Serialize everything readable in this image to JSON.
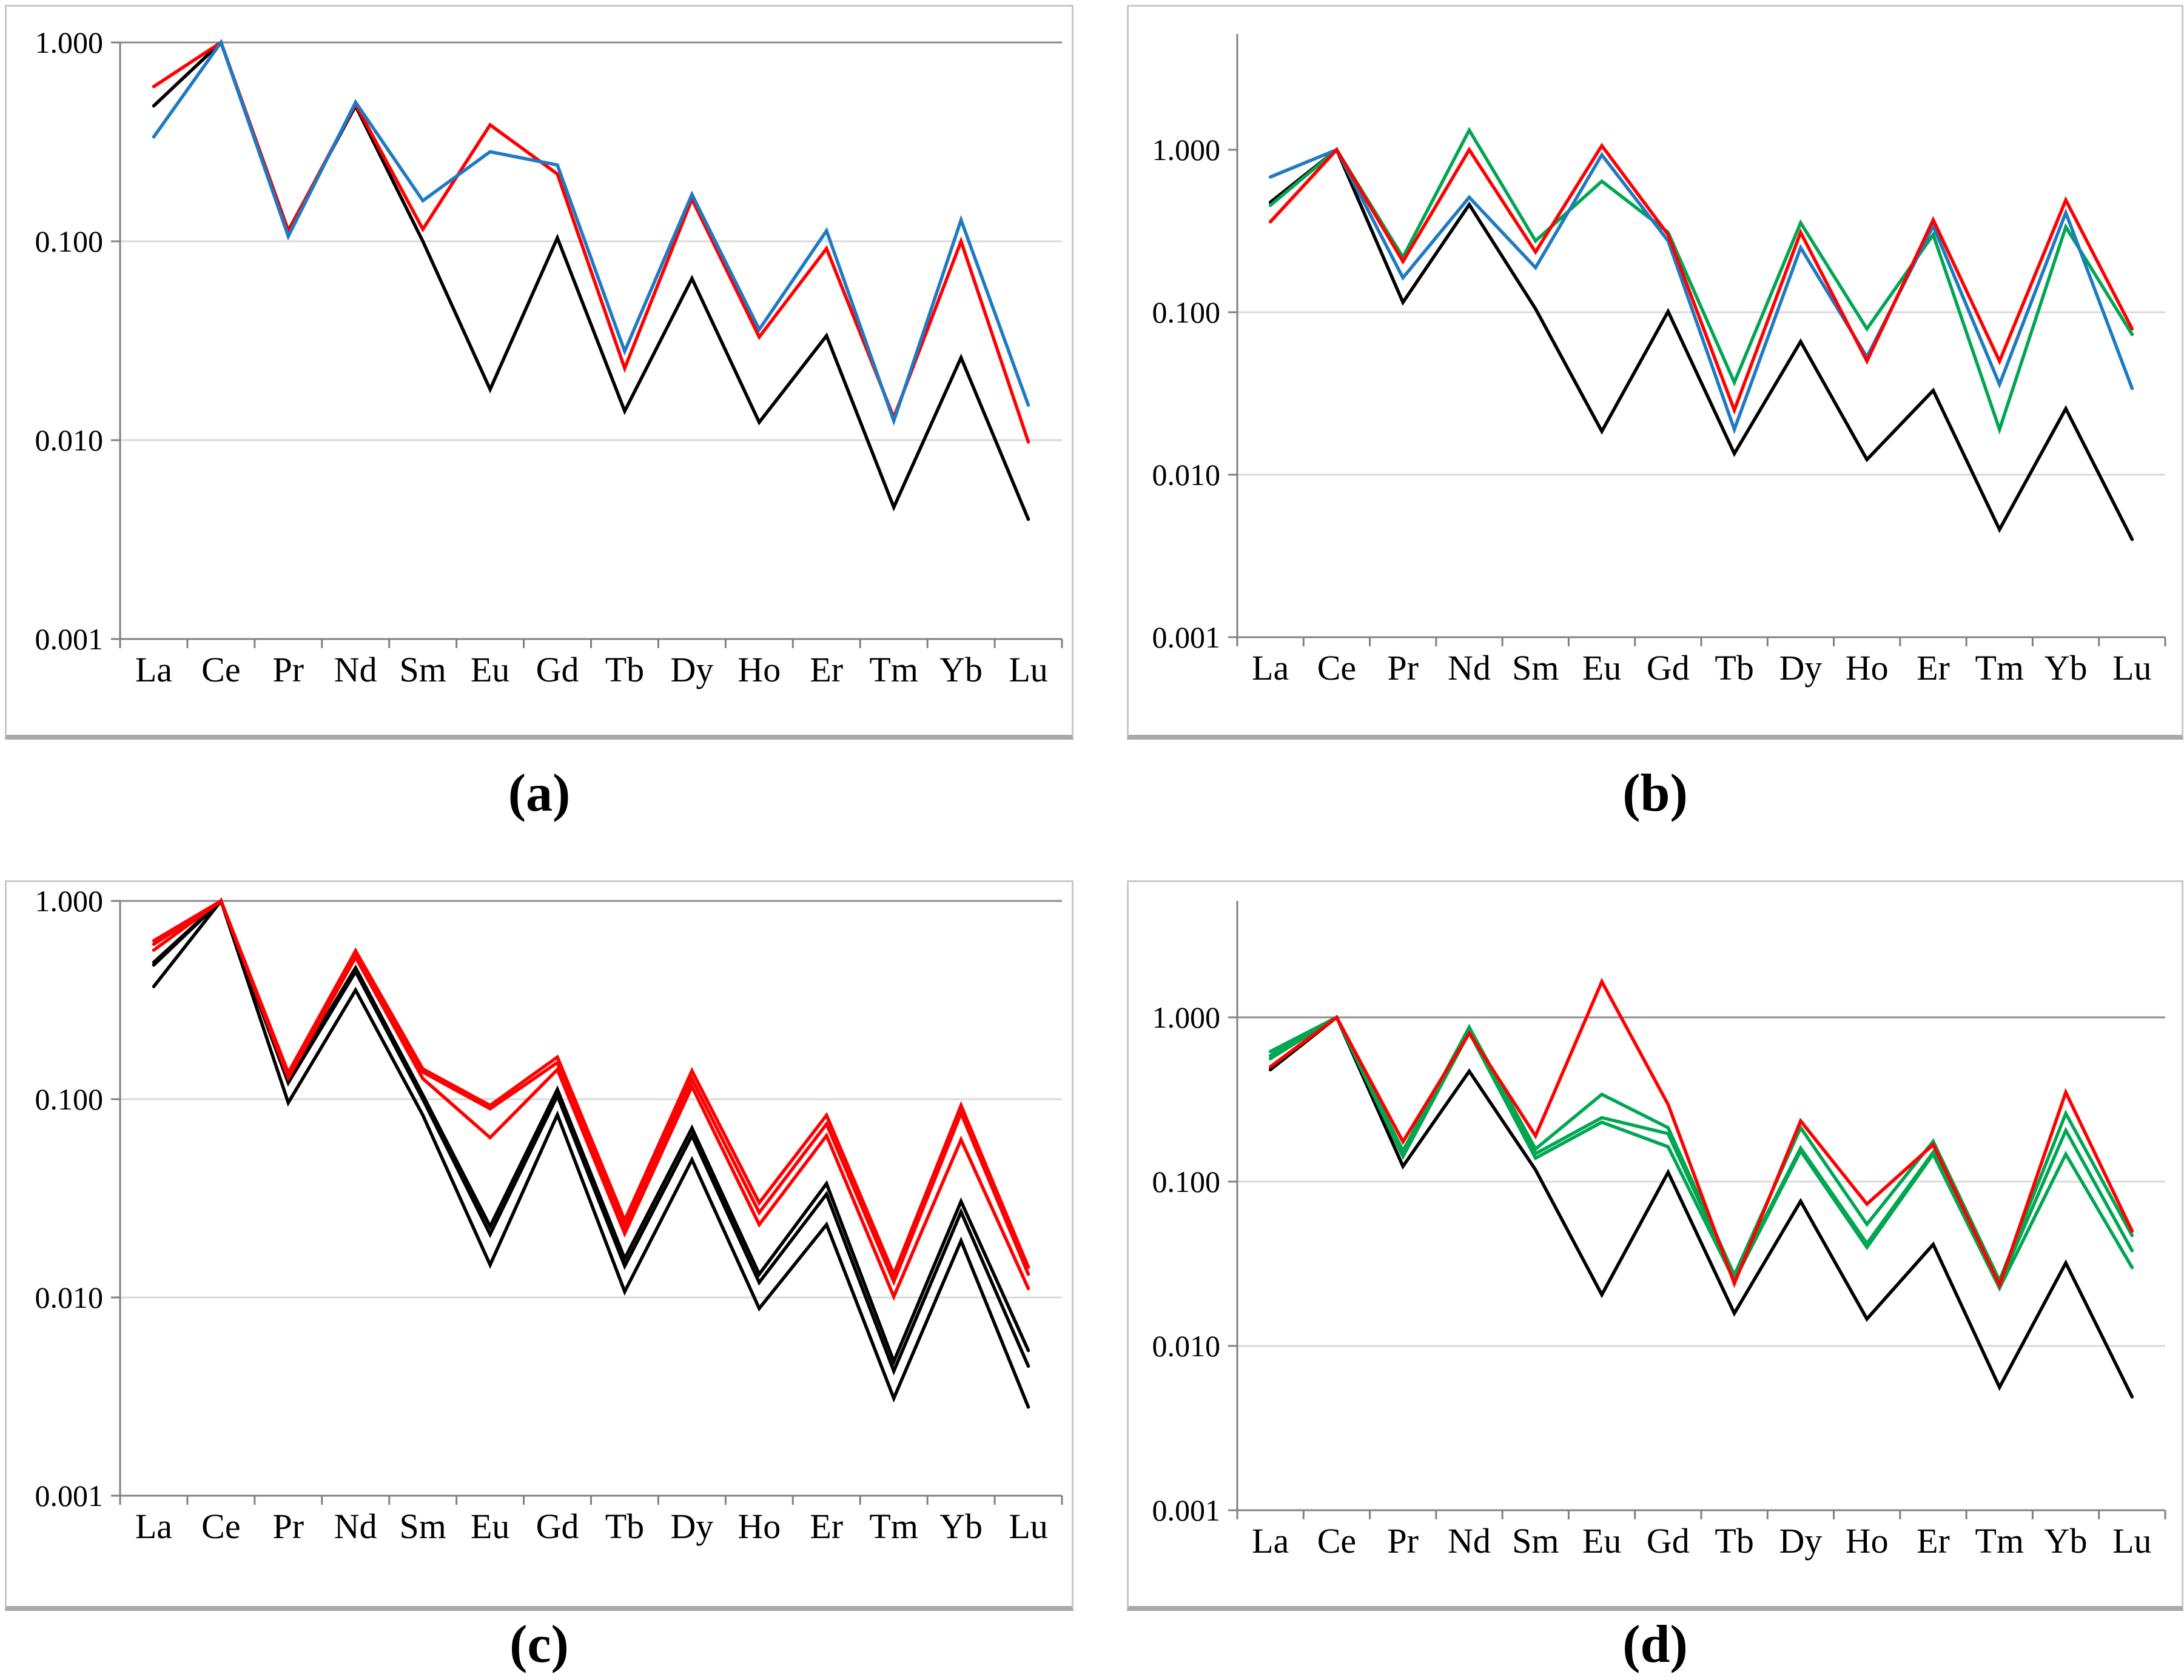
{
  "captions": {
    "a": "(a)",
    "b": "(b)",
    "c": "(c)",
    "d": "(d)"
  },
  "colors": {
    "black": "#000000",
    "red": "#FF0000",
    "blue": "#1F7AC4",
    "green": "#00A651",
    "grid_light": "#D9D9D9",
    "grid_dark": "#8C8C8C",
    "axis": "#808080",
    "text": "#000000"
  },
  "chart_data": [
    {
      "id": "a",
      "type": "line",
      "title": "",
      "xlabel": "",
      "ylabel": "",
      "x_categories": [
        "La",
        "Ce",
        "Pr",
        "Nd",
        "Sm",
        "Eu",
        "Gd",
        "Tb",
        "Dy",
        "Ho",
        "Er",
        "Tm",
        "Yb",
        "Lu"
      ],
      "y_axis": {
        "scale": "log",
        "min": 0.001,
        "max": 1.0,
        "tick_labels": [
          "1.000",
          "0.100",
          "0.010",
          "0.001"
        ],
        "tick_values": [
          1.0,
          0.1,
          0.01,
          0.001
        ]
      },
      "gridlines": {
        "dark": [
          1.0
        ],
        "light": [
          0.1,
          0.01
        ]
      },
      "legend": "none",
      "series": [
        {
          "name": "black-line",
          "color": "#000000",
          "values": [
            0.48,
            1.0,
            0.113,
            0.48,
            0.1,
            0.018,
            0.104,
            0.014,
            0.065,
            0.0123,
            0.0335,
            0.0046,
            0.026,
            0.004
          ]
        },
        {
          "name": "red-line",
          "color": "#FF0000",
          "values": [
            0.6,
            1.0,
            0.112,
            0.49,
            0.115,
            0.385,
            0.218,
            0.023,
            0.163,
            0.033,
            0.092,
            0.013,
            0.1,
            0.0098
          ]
        },
        {
          "name": "blue-line",
          "color": "#1F7AC4",
          "values": [
            0.335,
            1.0,
            0.106,
            0.5,
            0.16,
            0.282,
            0.242,
            0.028,
            0.172,
            0.036,
            0.113,
            0.0125,
            0.128,
            0.015
          ]
        }
      ]
    },
    {
      "id": "b",
      "type": "line",
      "title": "",
      "xlabel": "",
      "ylabel": "",
      "x_categories": [
        "La",
        "Ce",
        "Pr",
        "Nd",
        "Sm",
        "Eu",
        "Gd",
        "Tb",
        "Dy",
        "Ho",
        "Er",
        "Tm",
        "Yb",
        "Lu"
      ],
      "y_axis": {
        "scale": "log",
        "min": 0.001,
        "max": 5.2,
        "tick_labels": [
          "1.000",
          "0.100",
          "0.010",
          "0.001"
        ],
        "tick_values": [
          1.0,
          0.1,
          0.01,
          0.001
        ]
      },
      "gridlines": {
        "dark": [],
        "light": [
          0.1,
          0.01
        ]
      },
      "legend": "none",
      "series": [
        {
          "name": "black-line",
          "color": "#000000",
          "values": [
            0.475,
            1.0,
            0.115,
            0.46,
            0.105,
            0.0185,
            0.101,
            0.0135,
            0.066,
            0.0124,
            0.033,
            0.0046,
            0.0255,
            0.004
          ]
        },
        {
          "name": "green-line",
          "color": "#00A651",
          "values": [
            0.455,
            1.0,
            0.218,
            1.32,
            0.275,
            0.64,
            0.31,
            0.037,
            0.355,
            0.079,
            0.3,
            0.019,
            0.335,
            0.073
          ]
        },
        {
          "name": "blue-line",
          "color": "#1F7AC4",
          "values": [
            0.68,
            1.0,
            0.163,
            0.51,
            0.188,
            0.93,
            0.275,
            0.019,
            0.25,
            0.053,
            0.34,
            0.036,
            0.41,
            0.034
          ]
        },
        {
          "name": "red-line",
          "color": "#FF0000",
          "values": [
            0.36,
            1.0,
            0.205,
            1.0,
            0.235,
            1.06,
            0.3,
            0.025,
            0.31,
            0.05,
            0.37,
            0.05,
            0.49,
            0.079
          ]
        }
      ]
    },
    {
      "id": "c",
      "type": "line",
      "title": "",
      "xlabel": "",
      "ylabel": "",
      "x_categories": [
        "La",
        "Ce",
        "Pr",
        "Nd",
        "Sm",
        "Eu",
        "Gd",
        "Tb",
        "Dy",
        "Ho",
        "Er",
        "Tm",
        "Yb",
        "Lu"
      ],
      "y_axis": {
        "scale": "log",
        "min": 0.001,
        "max": 1.0,
        "tick_labels": [
          "1.000",
          "0.100",
          "0.010",
          "0.001"
        ],
        "tick_values": [
          1.0,
          0.1,
          0.01,
          0.001
        ]
      },
      "gridlines": {
        "dark": [
          1.0
        ],
        "light": [
          0.1,
          0.01
        ]
      },
      "legend": "none",
      "series": [
        {
          "name": "black-line-1",
          "color": "#000000",
          "values": [
            0.49,
            1.0,
            0.126,
            0.46,
            0.105,
            0.0228,
            0.112,
            0.0157,
            0.0715,
            0.0131,
            0.0375,
            0.00475,
            0.0305,
            0.0054
          ]
        },
        {
          "name": "black-line-2",
          "color": "#000000",
          "values": [
            0.475,
            1.0,
            0.121,
            0.44,
            0.1,
            0.0208,
            0.104,
            0.0144,
            0.0655,
            0.0119,
            0.0332,
            0.00425,
            0.027,
            0.0045
          ]
        },
        {
          "name": "black-line-3",
          "color": "#000000",
          "values": [
            0.37,
            1.0,
            0.096,
            0.355,
            0.083,
            0.0146,
            0.0835,
            0.0107,
            0.0495,
            0.0088,
            0.0233,
            0.0031,
            0.0193,
            0.0028
          ]
        },
        {
          "name": "red-line-1",
          "color": "#FF0000",
          "values": [
            0.63,
            1.0,
            0.136,
            0.56,
            0.142,
            0.093,
            0.163,
            0.0245,
            0.139,
            0.03,
            0.083,
            0.0131,
            0.093,
            0.0142
          ]
        },
        {
          "name": "red-line-2",
          "color": "#FF0000",
          "values": [
            0.605,
            1.0,
            0.132,
            0.54,
            0.137,
            0.0895,
            0.153,
            0.0228,
            0.127,
            0.0268,
            0.075,
            0.012,
            0.085,
            0.0131
          ]
        },
        {
          "name": "red-line-3",
          "color": "#FF0000",
          "values": [
            0.565,
            1.0,
            0.128,
            0.52,
            0.127,
            0.064,
            0.141,
            0.021,
            0.116,
            0.0233,
            0.0655,
            0.0101,
            0.0625,
            0.0111
          ]
        }
      ]
    },
    {
      "id": "d",
      "type": "line",
      "title": "",
      "xlabel": "",
      "ylabel": "",
      "x_categories": [
        "La",
        "Ce",
        "Pr",
        "Nd",
        "Sm",
        "Eu",
        "Gd",
        "Tb",
        "Dy",
        "Ho",
        "Er",
        "Tm",
        "Yb",
        "Lu"
      ],
      "y_axis": {
        "scale": "log",
        "min": 0.001,
        "max": 5.1,
        "tick_labels": [
          "1.000",
          "0.100",
          "0.010",
          "0.001"
        ],
        "tick_values": [
          1.0,
          0.1,
          0.01,
          0.001
        ]
      },
      "gridlines": {
        "dark": [
          1.0
        ],
        "light": [
          0.1,
          0.01
        ]
      },
      "legend": "none",
      "series": [
        {
          "name": "black-line",
          "color": "#000000",
          "values": [
            0.48,
            1.0,
            0.124,
            0.47,
            0.118,
            0.0205,
            0.114,
            0.0158,
            0.076,
            0.0146,
            0.0415,
            0.0056,
            0.032,
            0.0049
          ]
        },
        {
          "name": "green-line-3",
          "color": "#00A651",
          "values": [
            0.56,
            1.0,
            0.142,
            0.81,
            0.139,
            0.23,
            0.163,
            0.025,
            0.154,
            0.0398,
            0.147,
            0.0225,
            0.147,
            0.03
          ]
        },
        {
          "name": "green-line-2",
          "color": "#00A651",
          "values": [
            0.585,
            1.0,
            0.147,
            0.84,
            0.148,
            0.245,
            0.196,
            0.026,
            0.16,
            0.042,
            0.151,
            0.0238,
            0.205,
            0.038
          ]
        },
        {
          "name": "green-line-1",
          "color": "#00A651",
          "values": [
            0.62,
            1.0,
            0.154,
            0.87,
            0.158,
            0.34,
            0.213,
            0.027,
            0.213,
            0.055,
            0.176,
            0.025,
            0.26,
            0.047
          ]
        },
        {
          "name": "red-line",
          "color": "#FF0000",
          "values": [
            0.5,
            1.0,
            0.175,
            0.8,
            0.19,
            1.65,
            0.295,
            0.024,
            0.234,
            0.073,
            0.168,
            0.0235,
            0.35,
            0.05
          ]
        }
      ]
    }
  ]
}
